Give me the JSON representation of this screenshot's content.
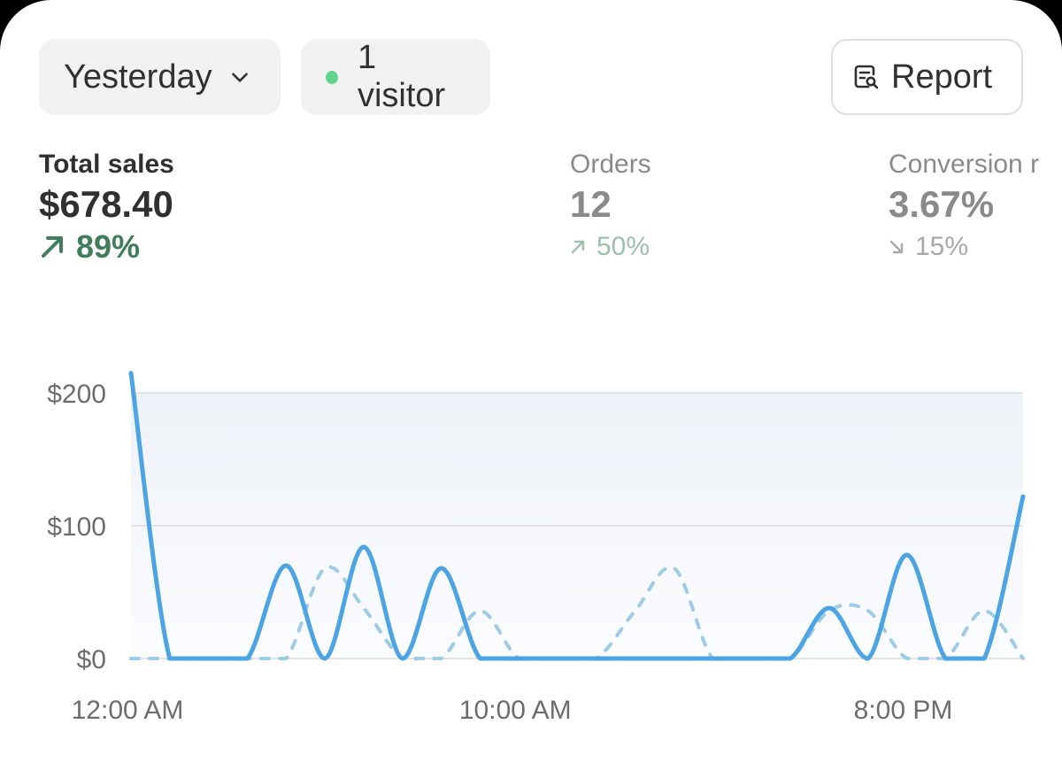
{
  "toolbar": {
    "date_label": "Yesterday",
    "visitors_label": "1 visitor",
    "visitors_dot_color": "#5fd68c",
    "report_label": "Report"
  },
  "metrics": {
    "total_sales": {
      "label": "Total sales",
      "value": "$678.40",
      "change": "89%",
      "direction": "up"
    },
    "orders": {
      "label": "Orders",
      "value": "12",
      "change": "50%",
      "direction": "up"
    },
    "conversion": {
      "label": "Conversion r",
      "value": "3.67%",
      "change": "15%",
      "direction": "down"
    }
  },
  "colors": {
    "primary_line": "#4da4e3",
    "comparison_line": "#9ecbe6",
    "positive": "#3f7d5c",
    "grid": "#e3e3e3"
  },
  "chart_data": {
    "type": "line",
    "ylim": [
      0,
      200
    ],
    "yticks": [
      "$200",
      "$100",
      "$0"
    ],
    "xticks": [
      "12:00 AM",
      "10:00 AM",
      "8:00 PM"
    ],
    "grid": true,
    "series": [
      {
        "style": "solid",
        "x": [
          0,
          1,
          2,
          3,
          4,
          5,
          6,
          7,
          8,
          9,
          10,
          11,
          12,
          13,
          14,
          15,
          16,
          17,
          18,
          19,
          20,
          21,
          22,
          23
        ],
        "values": [
          215,
          0,
          0,
          0,
          70,
          0,
          84,
          0,
          68,
          0,
          0,
          0,
          0,
          0,
          0,
          0,
          0,
          0,
          38,
          0,
          78,
          0,
          0,
          122
        ]
      },
      {
        "style": "dashed",
        "x": [
          0,
          1,
          2,
          3,
          4,
          5,
          6,
          7,
          8,
          9,
          10,
          11,
          12,
          13,
          14,
          15,
          16,
          17,
          18,
          19,
          20,
          21,
          22,
          23
        ],
        "values": [
          0,
          0,
          0,
          0,
          0,
          68,
          38,
          0,
          0,
          36,
          0,
          0,
          0,
          36,
          68,
          0,
          0,
          0,
          36,
          36,
          0,
          0,
          36,
          0
        ]
      }
    ]
  }
}
